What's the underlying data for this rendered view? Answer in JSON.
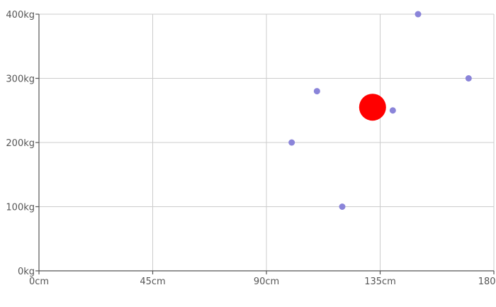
{
  "chart_data": {
    "type": "scatter",
    "title": "",
    "xlabel": "",
    "ylabel": "",
    "xlim": [
      0,
      180
    ],
    "ylim": [
      0,
      400
    ],
    "x_unit": "cm",
    "y_unit": "kg",
    "x_ticks": [
      0,
      45,
      90,
      135,
      180
    ],
    "y_ticks": [
      0,
      100,
      200,
      300,
      400
    ],
    "x_tick_labels": [
      "0cm",
      "45cm",
      "90cm",
      "135cm",
      "180cm"
    ],
    "y_tick_labels": [
      "0kg",
      "100kg",
      "200kg",
      "300kg",
      "400kg"
    ],
    "grid": true,
    "legend": "none",
    "series": [
      {
        "color": "#8a84d9",
        "points": [
          {
            "x": 100,
            "y": 200
          },
          {
            "x": 110,
            "y": 280
          },
          {
            "x": 120,
            "y": 100
          },
          {
            "x": 140,
            "y": 250
          },
          {
            "x": 150,
            "y": 400
          },
          {
            "x": 170,
            "y": 300
          }
        ]
      },
      {
        "color": "#ff0000",
        "marker": "large",
        "points": [
          {
            "x": 132,
            "y": 255
          }
        ]
      }
    ]
  }
}
